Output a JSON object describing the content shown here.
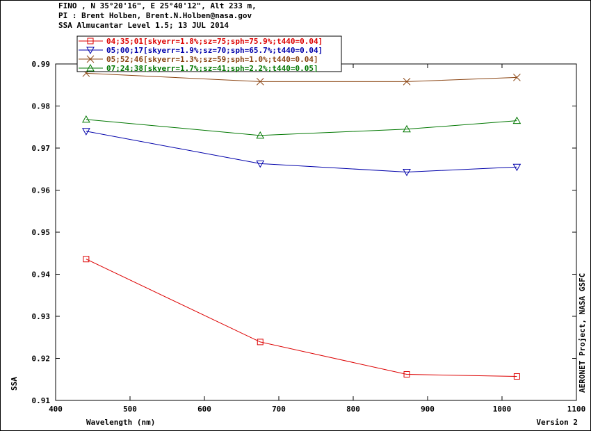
{
  "header": {
    "line1": "FINO , N 35°20'16\", E 25°40'12\", Alt 233 m,",
    "line2": "PI : Brent Holben, Brent.N.Holben@nasa.gov",
    "line3": "SSA Almucantar Level 1.5; 13 JUL 2014"
  },
  "chart_data": {
    "type": "line",
    "title": "SSA Almucantar Level 1.5; 13 JUL 2014",
    "xlabel": "Wavelength (nm)",
    "ylabel": "SSA",
    "xlim": [
      400,
      1100
    ],
    "ylim": [
      0.91,
      0.99
    ],
    "xticks": [
      "400",
      "500",
      "600",
      "700",
      "800",
      "900",
      "1000",
      "1100"
    ],
    "yticks": [
      "0.91",
      "0.92",
      "0.93",
      "0.94",
      "0.95",
      "0.96",
      "0.97",
      "0.98",
      "0.99"
    ],
    "legend_position": "top-left",
    "right_label": "AERONET Project, NASA GSFC",
    "footer_right": "Version 2",
    "series": [
      {
        "name": "04;35;01[skyerr=1.8%;sz=75;sph=75.9%;t440=0.04]",
        "color": "#dd0000",
        "marker": "square",
        "x": [
          441,
          675,
          872,
          1020
        ],
        "y": [
          0.9436,
          0.9239,
          0.9162,
          0.9157
        ]
      },
      {
        "name": "05;00;17[skyerr=1.9%;sz=70;sph=65.7%;t440=0.04]",
        "color": "#0000aa",
        "marker": "triangle-down",
        "x": [
          441,
          675,
          872,
          1020
        ],
        "y": [
          0.974,
          0.9663,
          0.9643,
          0.9655
        ]
      },
      {
        "name": "05;52;46[skyerr=1.3%;sz=59;sph=1.0%;t440=0.04]",
        "color": "#8b4513",
        "marker": "x",
        "x": [
          441,
          675,
          872,
          1020
        ],
        "y": [
          0.9878,
          0.9858,
          0.9858,
          0.9868
        ]
      },
      {
        "name": "07;24;38[skyerr=1.7%;sz=41;sph=2.2%;t440=0.05]",
        "color": "#007700",
        "marker": "triangle-up",
        "x": [
          441,
          675,
          872,
          1020
        ],
        "y": [
          0.9768,
          0.973,
          0.9745,
          0.9765
        ]
      }
    ]
  }
}
